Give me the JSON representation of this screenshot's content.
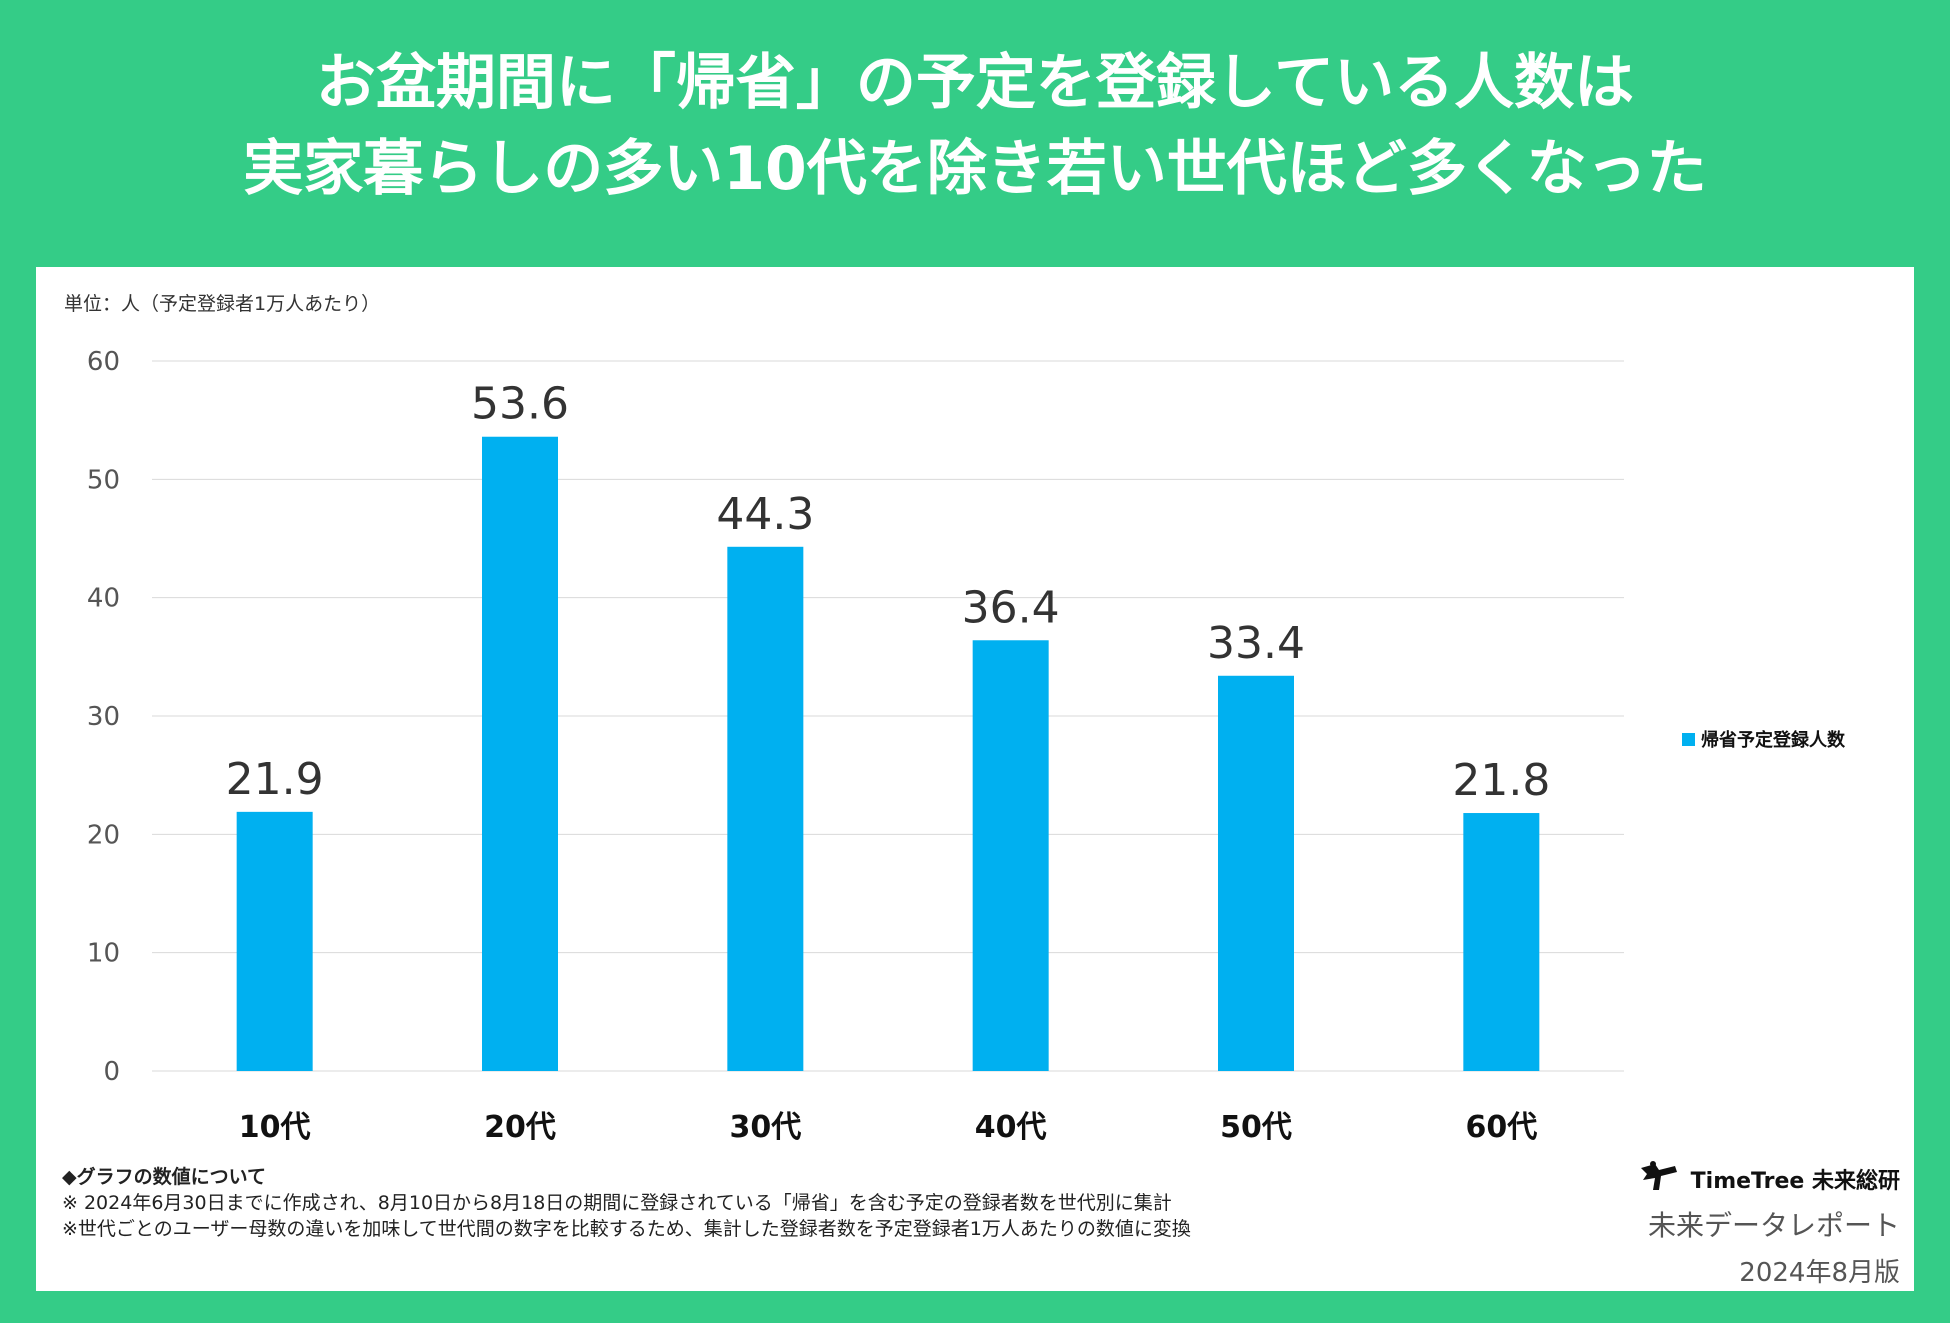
{
  "title_lines": [
    "お盆期間に「帰省」の予定を登録している人数は",
    "実家暮らしの多い10代を除き若い世代ほど多くなった"
  ],
  "unit_label": "単位：人（予定登録者1万人あたり）",
  "chart_data": {
    "type": "bar",
    "categories": [
      "10代",
      "20代",
      "30代",
      "40代",
      "50代",
      "60代"
    ],
    "series": [
      {
        "name": "帰省予定登録人数",
        "values": [
          21.9,
          53.6,
          44.3,
          36.4,
          33.4,
          21.8
        ],
        "color": "#00b0f0"
      }
    ],
    "data_labels": [
      "21.9",
      "53.6",
      "44.3",
      "36.4",
      "33.4",
      "21.8"
    ],
    "ylim": [
      0,
      60
    ],
    "yticks": [
      0,
      10,
      20,
      30,
      40,
      50,
      60
    ],
    "grid": true,
    "legend_position": "right"
  },
  "notes": {
    "heading": "◆グラフの数値について",
    "lines": [
      "※ 2024年6月30日までに作成され、8月10日から8月18日の期間に登録されている「帰省」を含む予定の登録者数を世代別に集計",
      "※世代ごとのユーザー母数の違いを加味して世代間の数字を比較するため、集計した登録者数を予定登録者1万人あたりの数値に変換"
    ]
  },
  "brand": {
    "logo_icon": "timetree-logo-icon",
    "name": "TimeTree 未来総研",
    "subtitle": "未来データレポート",
    "edition": "2024年8月版"
  },
  "colors": {
    "background": "#34cc87",
    "bar": "#00b0f0",
    "grid": "#d9d9d9"
  }
}
